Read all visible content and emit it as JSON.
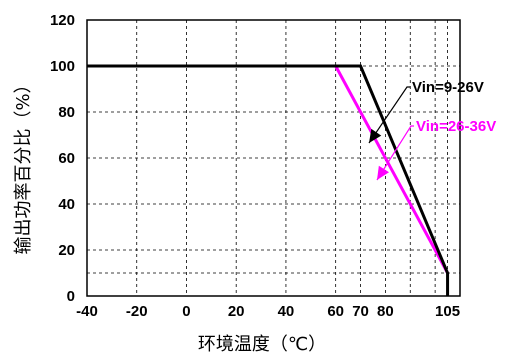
{
  "chart_data": {
    "type": "line",
    "xlabel": "环境温度（℃）",
    "ylabel": "输出功率百分比（%）",
    "x_ticks": [
      "-40",
      "-20",
      "0",
      "20",
      "40",
      "60",
      "70",
      "80",
      "105"
    ],
    "x_tick_values": [
      -40,
      -20,
      0,
      20,
      40,
      60,
      70,
      80,
      105
    ],
    "y_ticks": [
      "0",
      "20",
      "40",
      "60",
      "80",
      "100",
      "120"
    ],
    "y_tick_values": [
      0,
      20,
      40,
      60,
      80,
      100,
      120
    ],
    "xlim": [
      -40,
      110
    ],
    "ylim": [
      0,
      120
    ],
    "grid": true,
    "extra_gridlines": {
      "x": [
        90,
        100
      ],
      "y": [
        10
      ]
    },
    "series": [
      {
        "name": "Vin=9-26V",
        "color": "#000000",
        "x": [
          -40,
          70,
          105,
          105
        ],
        "y": [
          100,
          100,
          10,
          0
        ]
      },
      {
        "name": "Vin=26-36V",
        "color": "#ff00ff",
        "x": [
          60,
          105
        ],
        "y": [
          100,
          10
        ]
      }
    ]
  }
}
